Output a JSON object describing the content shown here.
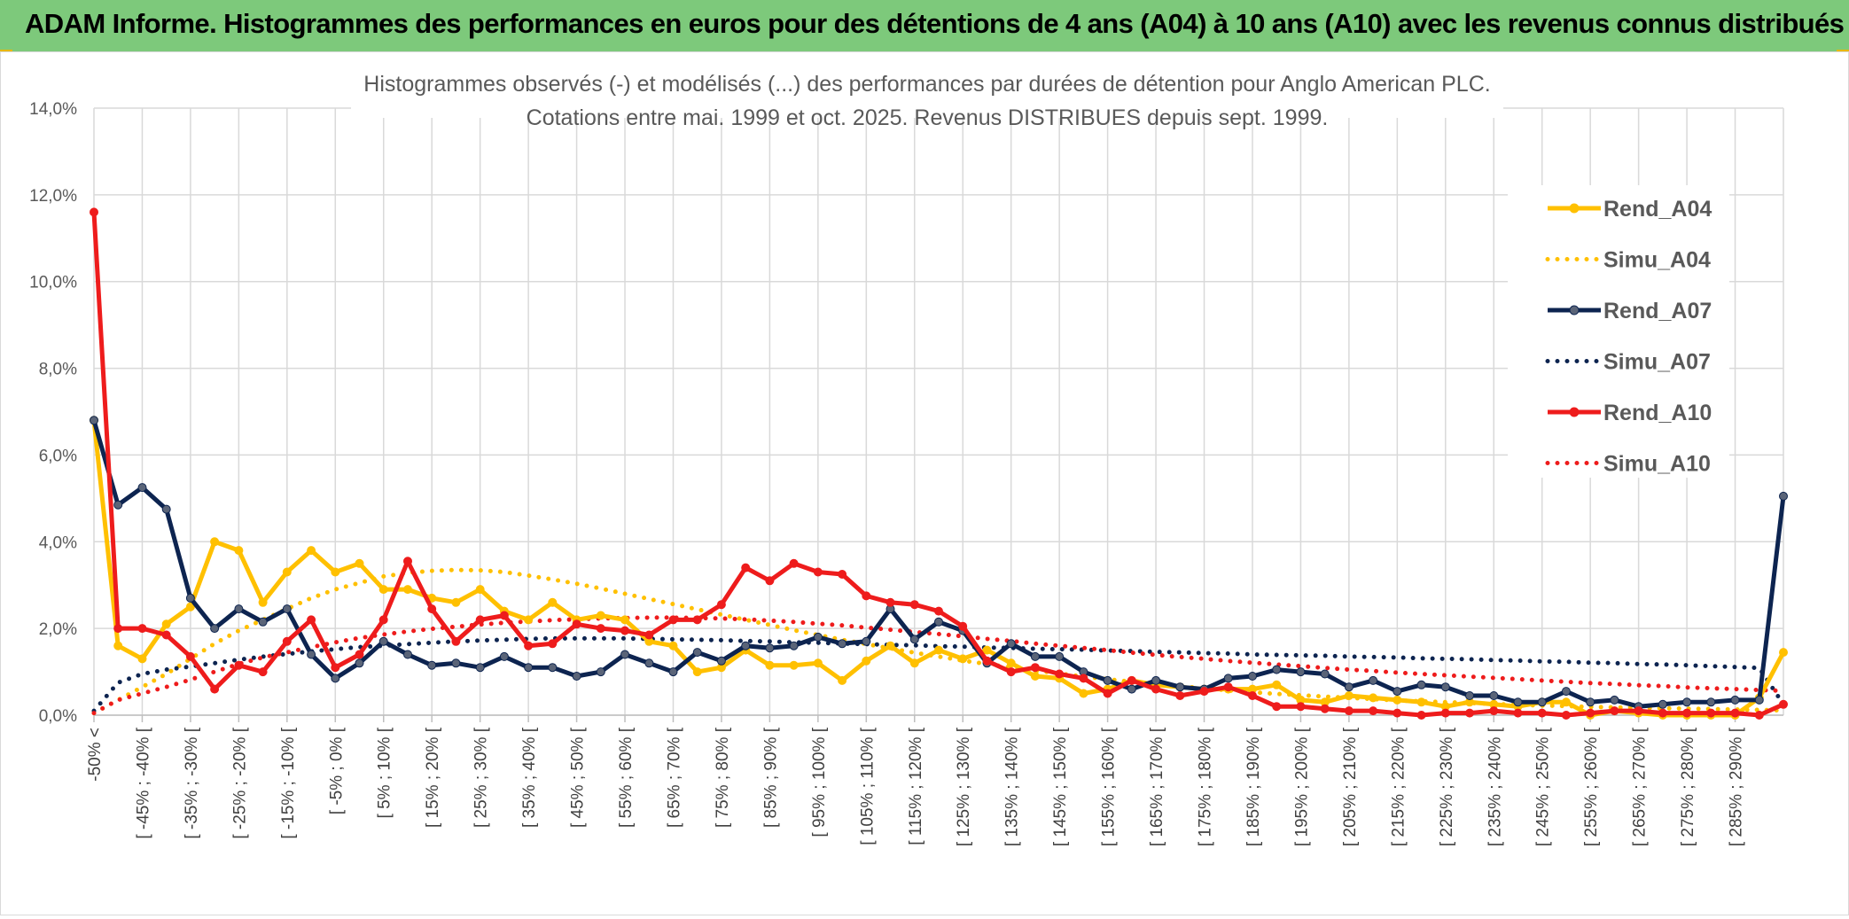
{
  "banner": {
    "title": "ADAM Informe. Histogrammes des performances en euros pour des détentions de 4 ans (A04) à 10 ans (A10) avec les revenus connus distribués"
  },
  "colors": {
    "banner_bg": "#7dc97b",
    "A04": "#ffc000",
    "A07": "#0d2450",
    "A10": "#ee1c1c",
    "A07_marker": "#5a6478",
    "grid": "#d9d9d9"
  },
  "chart_data": {
    "type": "line",
    "title_line1": "Histogrammes observés (-) et modélisés (...) des performances par durées de détention pour Anglo American PLC.",
    "title_line2": "Cotations entre mai. 1999 et oct. 2025. Revenus DISTRIBUES depuis sept. 1999.",
    "ylim": [
      0,
      14
    ],
    "y_ticks": [
      "0,0%",
      "2,0%",
      "4,0%",
      "6,0%",
      "8,0%",
      "10,0%",
      "12,0%",
      "14,0%"
    ],
    "legend_position": "right",
    "grid": true,
    "x_labels": [
      "-50% <",
      "[ -45% ; -40% [",
      "[ -35% ; -30% [",
      "[ -25% ; -20% [",
      "[ -15% ; -10% [",
      "[ -5% ; 0% [",
      "[ 5% ; 10% [",
      "[ 15% ; 20% [",
      "[ 25% ; 30% [",
      "[ 35% ; 40% [",
      "[ 45% ; 50% [",
      "[ 55% ; 60% [",
      "[ 65% ; 70% [",
      "[ 75% ; 80% [",
      "[ 85% ; 90% [",
      "[ 95% ; 100% [",
      "[ 105% ; 110% [",
      "[ 115% ; 120% [",
      "[ 125% ; 130% [",
      "[ 135% ; 140% [",
      "[ 145% ; 150% [",
      "[ 155% ; 160% [",
      "[ 165% ; 170% [",
      "[ 175% ; 180% [",
      "[ 185% ; 190% [",
      "[ 195% ; 200% [",
      "[ 205% ; 210% [",
      "[ 215% ; 220% [",
      "[ 225% ; 230% [",
      "[ 235% ; 240% [",
      "[ 245% ; 250% [",
      "[ 255% ; 260% [",
      "[ 265% ; 270% [",
      "[ 275% ; 280% [",
      "[ 285% ; 290% ["
    ],
    "series": [
      {
        "name": "Rend_A04",
        "style": "solid",
        "color": "#ffc000",
        "values": [
          6.8,
          1.6,
          1.3,
          2.1,
          2.5,
          4.0,
          3.8,
          2.6,
          3.3,
          3.8,
          3.3,
          3.5,
          2.9,
          2.9,
          2.7,
          2.6,
          2.9,
          2.4,
          2.2,
          2.6,
          2.2,
          2.3,
          2.2,
          1.7,
          1.6,
          1.0,
          1.1,
          1.5,
          1.15,
          1.15,
          1.2,
          0.8,
          1.25,
          1.6,
          1.2,
          1.5,
          1.3,
          1.5,
          1.2,
          0.9,
          0.85,
          0.5,
          0.6,
          0.8,
          0.7,
          0.65,
          0.6,
          0.6,
          0.6,
          0.7,
          0.35,
          0.3,
          0.45,
          0.4,
          0.35,
          0.3,
          0.2,
          0.3,
          0.25,
          0.2,
          0.3,
          0.3,
          0.0,
          0.1,
          0.05,
          0.0,
          0.0,
          0.0,
          0.0,
          0.4,
          1.45
        ]
      },
      {
        "name": "Simu_A04",
        "style": "dotted",
        "color": "#ffc000",
        "values": [
          0.05,
          0.35,
          0.65,
          0.95,
          1.3,
          1.65,
          1.95,
          2.2,
          2.45,
          2.7,
          2.9,
          3.05,
          3.2,
          3.28,
          3.33,
          3.35,
          3.34,
          3.3,
          3.22,
          3.13,
          3.03,
          2.92,
          2.8,
          2.68,
          2.56,
          2.44,
          2.32,
          2.2,
          2.08,
          1.96,
          1.85,
          1.74,
          1.64,
          1.54,
          1.44,
          1.35,
          1.26,
          1.18,
          1.1,
          1.03,
          0.96,
          0.89,
          0.83,
          0.77,
          0.72,
          0.67,
          0.62,
          0.57,
          0.53,
          0.49,
          0.46,
          0.43,
          0.4,
          0.37,
          0.34,
          0.32,
          0.3,
          0.28,
          0.26,
          0.24,
          0.22,
          0.21,
          0.19,
          0.18,
          0.17,
          0.16,
          0.15,
          0.14,
          0.13,
          0.12,
          0.11
        ]
      },
      {
        "name": "Rend_A07",
        "style": "solid",
        "color": "#0d2450",
        "values": [
          6.8,
          4.85,
          5.25,
          4.75,
          2.7,
          2.0,
          2.45,
          2.15,
          2.45,
          1.4,
          0.85,
          1.2,
          1.7,
          1.4,
          1.15,
          1.2,
          1.1,
          1.35,
          1.1,
          1.1,
          0.9,
          1.0,
          1.4,
          1.2,
          1.0,
          1.45,
          1.25,
          1.6,
          1.55,
          1.6,
          1.8,
          1.65,
          1.7,
          2.45,
          1.75,
          2.15,
          1.95,
          1.2,
          1.65,
          1.35,
          1.35,
          1.0,
          0.8,
          0.6,
          0.8,
          0.65,
          0.6,
          0.85,
          0.9,
          1.05,
          1.0,
          0.95,
          0.65,
          0.8,
          0.55,
          0.7,
          0.65,
          0.45,
          0.45,
          0.3,
          0.3,
          0.55,
          0.3,
          0.35,
          0.2,
          0.25,
          0.3,
          0.3,
          0.35,
          0.35,
          5.05
        ]
      },
      {
        "name": "Simu_A07",
        "style": "dotted",
        "color": "#0d2450",
        "values": [
          0.1,
          0.75,
          0.95,
          1.05,
          1.12,
          1.2,
          1.28,
          1.35,
          1.41,
          1.47,
          1.52,
          1.57,
          1.6,
          1.64,
          1.67,
          1.7,
          1.72,
          1.74,
          1.76,
          1.77,
          1.77,
          1.77,
          1.77,
          1.76,
          1.75,
          1.74,
          1.73,
          1.71,
          1.7,
          1.68,
          1.67,
          1.65,
          1.64,
          1.62,
          1.61,
          1.59,
          1.58,
          1.56,
          1.55,
          1.53,
          1.52,
          1.51,
          1.49,
          1.48,
          1.46,
          1.45,
          1.43,
          1.42,
          1.4,
          1.39,
          1.38,
          1.37,
          1.35,
          1.34,
          1.33,
          1.31,
          1.3,
          1.29,
          1.27,
          1.26,
          1.24,
          1.23,
          1.21,
          1.2,
          1.18,
          1.17,
          1.15,
          1.13,
          1.11,
          1.09,
          0.25
        ]
      },
      {
        "name": "Rend_A10",
        "style": "solid",
        "color": "#ee1c1c",
        "values": [
          11.6,
          2.0,
          2.0,
          1.85,
          1.35,
          0.6,
          1.15,
          1.0,
          1.7,
          2.2,
          1.1,
          1.4,
          2.2,
          3.55,
          2.45,
          1.7,
          2.2,
          2.3,
          1.6,
          1.65,
          2.1,
          2.0,
          1.95,
          1.85,
          2.2,
          2.2,
          2.55,
          3.4,
          3.1,
          3.5,
          3.3,
          3.25,
          2.75,
          2.6,
          2.55,
          2.4,
          2.05,
          1.25,
          1.0,
          1.1,
          0.95,
          0.85,
          0.5,
          0.8,
          0.6,
          0.45,
          0.55,
          0.65,
          0.45,
          0.2,
          0.2,
          0.15,
          0.1,
          0.1,
          0.05,
          0.0,
          0.05,
          0.05,
          0.1,
          0.05,
          0.05,
          0.0,
          0.05,
          0.1,
          0.1,
          0.05,
          0.05,
          0.05,
          0.05,
          0.0,
          0.25
        ]
      },
      {
        "name": "Simu_A10",
        "style": "dotted",
        "color": "#ee1c1c",
        "values": [
          0.05,
          0.35,
          0.5,
          0.65,
          0.82,
          1.0,
          1.18,
          1.33,
          1.45,
          1.57,
          1.68,
          1.78,
          1.86,
          1.93,
          1.99,
          2.04,
          2.09,
          2.13,
          2.16,
          2.19,
          2.21,
          2.23,
          2.24,
          2.25,
          2.25,
          2.24,
          2.23,
          2.21,
          2.18,
          2.15,
          2.11,
          2.07,
          2.02,
          1.97,
          1.92,
          1.87,
          1.82,
          1.76,
          1.71,
          1.65,
          1.6,
          1.55,
          1.5,
          1.44,
          1.39,
          1.34,
          1.3,
          1.25,
          1.21,
          1.17,
          1.13,
          1.09,
          1.05,
          1.02,
          0.98,
          0.95,
          0.92,
          0.89,
          0.86,
          0.83,
          0.8,
          0.77,
          0.74,
          0.72,
          0.69,
          0.67,
          0.64,
          0.62,
          0.6,
          0.58,
          0.56
        ]
      }
    ]
  }
}
